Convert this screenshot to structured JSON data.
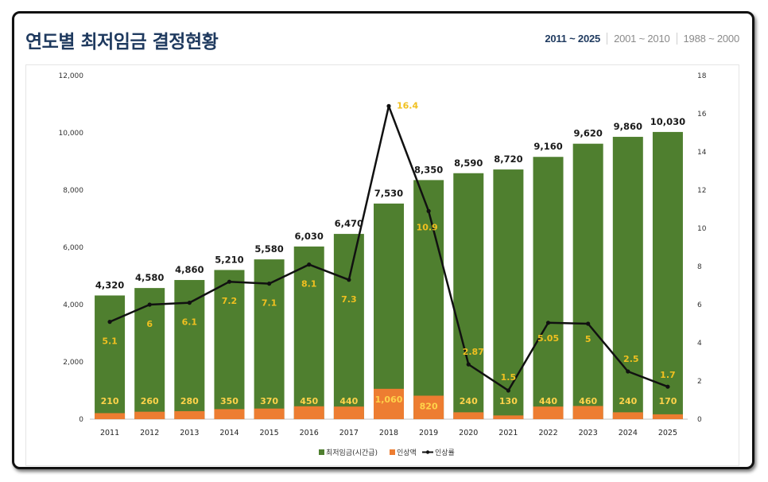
{
  "page": {
    "title": "연도별 최저임금 결정현황",
    "tabs": [
      {
        "label": "2011 ~ 2025",
        "active": true
      },
      {
        "label": "2001 ~ 2010",
        "active": false
      },
      {
        "label": "1988 ~ 2000",
        "active": false
      }
    ]
  },
  "colors": {
    "wage": "#4f7f2f",
    "increase": "#ed7d31",
    "rate_line": "#111111",
    "wage_label": "#1a1a1a",
    "inside_label": "#ffd34a"
  },
  "chart_data": {
    "type": "bar",
    "categories": [
      "2011",
      "2012",
      "2013",
      "2014",
      "2015",
      "2016",
      "2017",
      "2018",
      "2019",
      "2020",
      "2021",
      "2022",
      "2023",
      "2024",
      "2025"
    ],
    "series": [
      {
        "name": "최저임금(시간급)",
        "type": "bar",
        "axis": "left",
        "values": [
          4320,
          4580,
          4860,
          5210,
          5580,
          6030,
          6470,
          7530,
          8350,
          8590,
          8720,
          9160,
          9620,
          9860,
          10030
        ],
        "labels": [
          "4,320",
          "4,580",
          "4,860",
          "5,210",
          "5,580",
          "6,030",
          "6,470",
          "7,530",
          "8,350",
          "8,590",
          "8,720",
          "9,160",
          "9,620",
          "9,860",
          "10,030"
        ]
      },
      {
        "name": "인상액",
        "type": "bar",
        "axis": "left",
        "values": [
          210,
          260,
          280,
          350,
          370,
          450,
          440,
          1060,
          820,
          240,
          130,
          440,
          460,
          240,
          170
        ],
        "labels": [
          "210",
          "260",
          "280",
          "350",
          "370",
          "450",
          "440",
          "1,060",
          "820",
          "240",
          "130",
          "440",
          "460",
          "240",
          "170"
        ]
      },
      {
        "name": "인상률",
        "type": "line",
        "axis": "right",
        "values": [
          5.1,
          6,
          6.1,
          7.2,
          7.1,
          8.1,
          7.3,
          16.4,
          10.9,
          2.87,
          1.5,
          5.05,
          5,
          2.5,
          1.7
        ],
        "labels": [
          "5.1",
          "6",
          "6.1",
          "7.2",
          "7.1",
          "8.1",
          "7.3",
          "16.4",
          "10.9",
          "2.87",
          "1.5",
          "5.05",
          "5",
          "2.5",
          "1.7"
        ]
      }
    ],
    "y_left": {
      "min": 0,
      "max": 12000,
      "ticks": [
        0,
        2000,
        4000,
        6000,
        8000,
        10000,
        12000
      ],
      "tick_labels": [
        "0",
        "2,000",
        "4,000",
        "6,000",
        "8,000",
        "10,000",
        "12,000"
      ]
    },
    "y_right": {
      "min": 0,
      "max": 18,
      "ticks": [
        0,
        2,
        4,
        6,
        8,
        10,
        12,
        14,
        16,
        18
      ],
      "tick_labels": [
        "0",
        "2",
        "4",
        "6",
        "8",
        "10",
        "12",
        "14",
        "16",
        "18"
      ]
    },
    "legend": {
      "position": "bottom",
      "entries": [
        "최저임금(시간급)",
        "인상액",
        "인상률"
      ]
    },
    "grid": false
  }
}
